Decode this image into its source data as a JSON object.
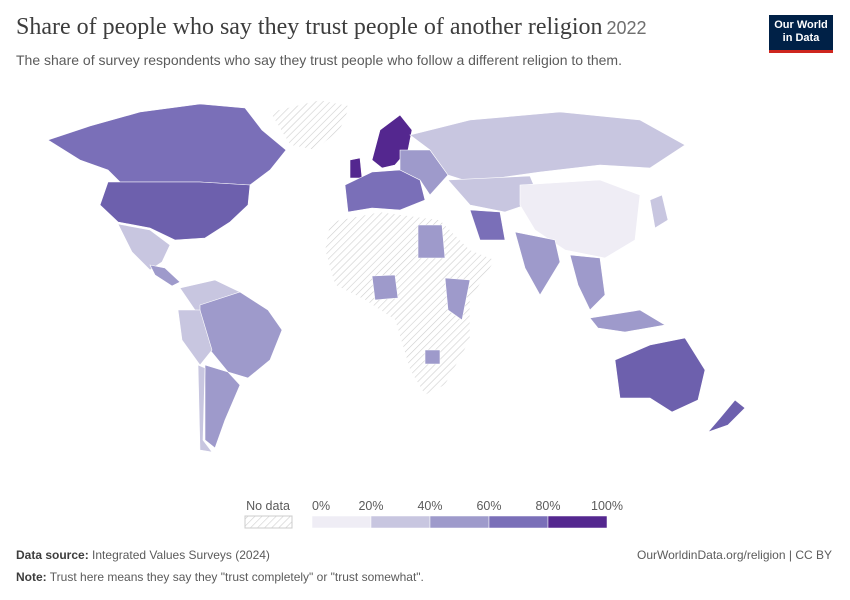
{
  "header": {
    "title": "Share of people who say they trust people of another religion",
    "year": "2022",
    "subtitle": "The share of survey respondents who say they trust people who follow a different religion to them.",
    "logo": [
      "Our World",
      "in Data"
    ]
  },
  "legend": {
    "no_data": "No data",
    "bins": [
      "0%",
      "20%",
      "40%",
      "60%",
      "80%",
      "100%"
    ],
    "colors": [
      "#efedf5",
      "#c8c6e0",
      "#9e9acb",
      "#7a6fb8",
      "#54278f"
    ]
  },
  "footer": {
    "source_label": "Data source:",
    "source": "Integrated Values Surveys (2024)",
    "link": "OurWorldinData.org/religion | CC BY",
    "note_label": "Note:",
    "note": "Trust here means they say they \"trust completely\" or \"trust somewhat\"."
  }
}
